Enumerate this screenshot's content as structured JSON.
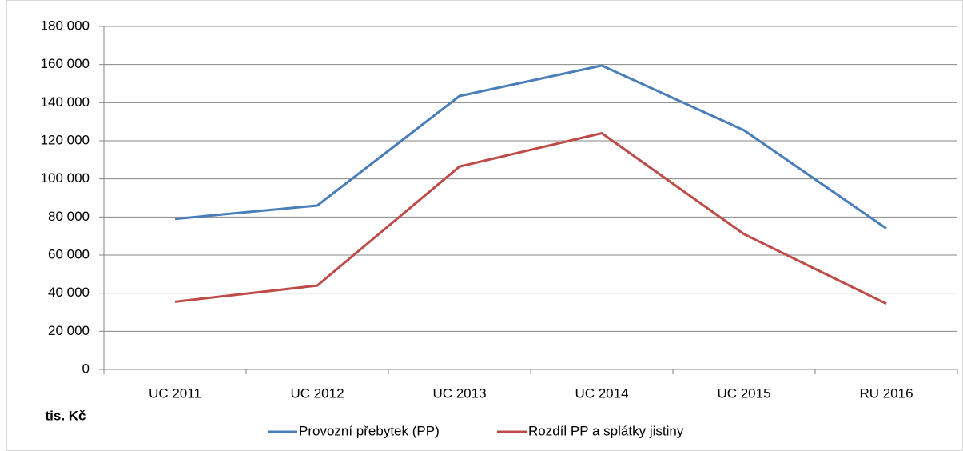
{
  "chart_data": {
    "type": "line",
    "ylabel": "tis. Kč",
    "categories": [
      "UC 2011",
      "UC 2012",
      "UC 2013",
      "UC 2014",
      "UC 2015",
      "RU 2016"
    ],
    "series": [
      {
        "name": "Provozní přebytek (PP)",
        "color": "#4a7ebb",
        "values": [
          79000,
          86000,
          143500,
          159500,
          125500,
          74000
        ]
      },
      {
        "name": "Rozdíl PP a splátky jistiny",
        "color": "#be4b48",
        "values": [
          35500,
          44000,
          106500,
          124000,
          71000,
          34500
        ]
      }
    ],
    "ylim": [
      0,
      180000
    ],
    "yticks": [
      0,
      {
        "value": 20000,
        "label": "20 000"
      },
      {
        "value": 40000,
        "label": "40 000"
      },
      {
        "value": 60000,
        "label": "60 000"
      },
      {
        "value": 80000,
        "label": "80 000"
      },
      {
        "value": 100000,
        "label": "100 000"
      },
      {
        "value": 120000,
        "label": "120 000"
      },
      {
        "value": 140000,
        "label": "140 000"
      },
      {
        "value": 160000,
        "label": "160 000"
      },
      {
        "value": 180000,
        "label": "180 000"
      }
    ],
    "grid": true,
    "legend": "bottom"
  }
}
